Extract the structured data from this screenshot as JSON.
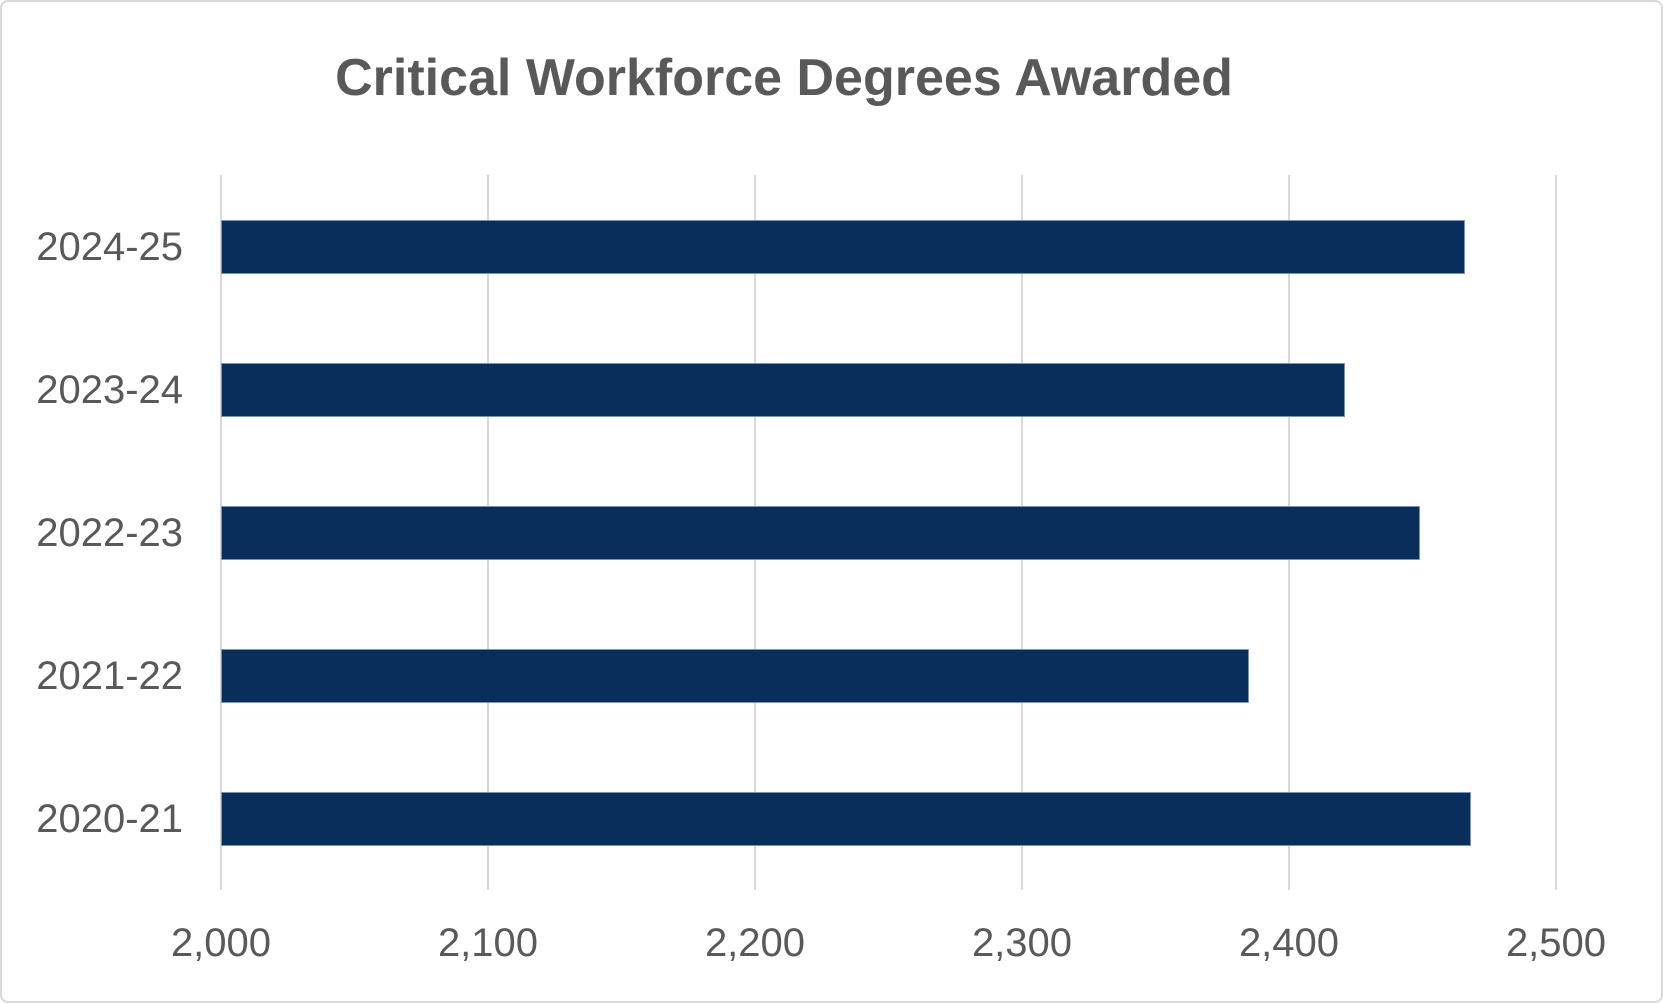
{
  "chart_data": {
    "type": "bar",
    "orientation": "horizontal",
    "title": "Critical Workforce Degrees Awarded",
    "categories": [
      "2024-25",
      "2023-24",
      "2022-23",
      "2021-22",
      "2020-21"
    ],
    "values": [
      2466,
      2421,
      2449,
      2385,
      2468
    ],
    "xlabel": "",
    "ylabel": "",
    "xlim": [
      2000,
      2500
    ],
    "xticks": [
      2000,
      2100,
      2200,
      2300,
      2400,
      2500
    ],
    "xtick_labels": [
      "2,000",
      "2,100",
      "2,200",
      "2,300",
      "2,400",
      "2,500"
    ],
    "grid": true,
    "legend": false,
    "bar_color": "#0a2e5c",
    "bar_edge_color": "#7b92b0",
    "gridline_color": "#d9d9d9",
    "text_color": "#595959",
    "title_color": "#595959",
    "border_color": "#d9d9d9",
    "background": "#ffffff"
  }
}
